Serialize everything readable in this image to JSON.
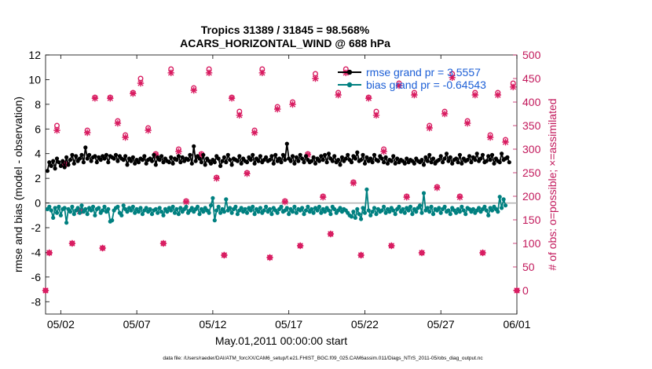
{
  "chart_data": {
    "type": "line",
    "title_lines": [
      "Tropics 31389 / 31845 = 98.568%",
      "ACARS_HORIZONTAL_WIND @ 688 hPa"
    ],
    "xlabel": "May.01,2011 00:00:00 start",
    "ylabel_left": "rmse and bias (model - observation)",
    "ylabel_right": "# of obs: o=possible; ×=assimilated",
    "xlim": [
      0,
      31
    ],
    "ylim_left": [
      -9,
      12
    ],
    "ylim_right": [
      -50,
      500
    ],
    "x_ticks": [
      1,
      6,
      11,
      16,
      21,
      26,
      31
    ],
    "x_tick_labels": [
      "05/02",
      "05/07",
      "05/12",
      "05/17",
      "05/22",
      "05/27",
      "06/01"
    ],
    "y_left_ticks": [
      -8,
      -6,
      -4,
      -2,
      0,
      2,
      4,
      6,
      8,
      10,
      12
    ],
    "y_right_ticks": [
      0,
      50,
      100,
      150,
      200,
      250,
      300,
      350,
      400,
      450,
      500
    ],
    "legend": {
      "placement": "top-right",
      "entries": [
        "rmse grand pr = 3.5557",
        "bias grand pr = -0.64543"
      ]
    },
    "series": [
      {
        "name": "rmse",
        "axis": "left",
        "color": "#000000",
        "x_start": 0.125,
        "x_step": 0.125,
        "values": [
          2.6,
          3.3,
          3.0,
          3.4,
          2.8,
          3.6,
          3.3,
          3.0,
          3.4,
          2.9,
          3.7,
          3.1,
          3.5,
          3.9,
          3.2,
          3.8,
          3.4,
          3.6,
          3.9,
          3.3,
          4.5,
          3.6,
          3.9,
          3.4,
          3.7,
          3.8,
          3.3,
          3.7,
          3.5,
          3.8,
          3.6,
          3.9,
          3.3,
          3.8,
          3.7,
          3.6,
          3.9,
          3.4,
          3.8,
          3.6,
          3.5,
          3.8,
          3.1,
          3.6,
          3.4,
          3.7,
          3.2,
          3.5,
          3.3,
          3.6,
          3.5,
          3.8,
          3.2,
          3.5,
          3.6,
          3.4,
          3.9,
          3.1,
          3.7,
          3.5,
          3.8,
          3.3,
          3.6,
          3.4,
          3.3,
          3.7,
          3.2,
          3.6,
          3.5,
          3.8,
          3.3,
          3.7,
          3.4,
          3.6,
          3.5,
          3.9,
          3.2,
          4.6,
          3.4,
          3.8,
          3.6,
          3.3,
          3.9,
          3.1,
          3.6,
          3.4,
          3.2,
          3.5,
          3.3,
          3.8,
          3.6,
          3.0,
          3.4,
          3.7,
          3.3,
          3.9,
          3.5,
          3.1,
          3.6,
          3.5,
          3.4,
          3.8,
          3.2,
          3.6,
          3.4,
          3.3,
          3.7,
          3.5,
          3.9,
          3.2,
          3.6,
          3.4,
          3.8,
          3.3,
          3.5,
          3.7,
          3.4,
          3.5,
          3.8,
          3.2,
          3.9,
          3.4,
          3.6,
          3.3,
          3.9,
          3.5,
          4.8,
          3.6,
          3.4,
          3.8,
          3.2,
          3.7,
          3.4,
          3.9,
          3.6,
          3.3,
          3.8,
          3.5,
          3.3,
          3.4,
          3.7,
          3.2,
          3.6,
          3.4,
          3.8,
          3.5,
          3.9,
          3.3,
          4.0,
          3.6,
          3.4,
          3.8,
          3.3,
          3.5,
          3.1,
          3.7,
          3.4,
          3.6,
          3.9,
          3.5,
          3.3,
          3.8,
          3.6,
          4.1,
          3.4,
          3.5,
          3.9,
          3.2,
          3.7,
          3.4,
          3.6,
          3.3,
          3.9,
          3.5,
          3.4,
          3.8,
          3.6,
          3.3,
          3.7,
          3.2,
          3.5,
          3.4,
          3.8,
          3.2,
          3.6,
          3.3,
          3.5,
          3.4,
          3.2,
          3.6,
          3.3,
          3.5,
          3.4,
          3.2,
          3.6,
          3.4,
          3.3,
          3.5,
          3.1,
          3.7,
          3.4,
          3.9,
          3.3,
          3.6,
          3.2,
          3.4,
          3.5,
          3.8,
          3.3,
          3.6,
          4.0,
          3.4,
          3.7,
          3.2,
          3.5,
          3.6,
          3.3,
          3.9,
          3.2,
          3.6,
          3.4,
          3.5,
          3.8,
          3.3,
          3.7,
          3.5,
          4.0,
          3.4,
          3.6,
          3.9,
          3.3,
          3.4,
          3.8,
          3.5,
          3.9,
          3.2,
          3.6,
          3.4,
          3.3,
          4.0,
          3.5,
          3.6,
          3.7,
          3.3
        ]
      },
      {
        "name": "bias",
        "axis": "left",
        "color": "#008080",
        "x_start": 0.125,
        "x_step": 0.125,
        "values": [
          -0.5,
          -0.3,
          -0.6,
          -1.2,
          -0.4,
          -0.8,
          -0.3,
          -1.0,
          -0.5,
          -0.4,
          -1.6,
          -0.5,
          -0.7,
          -0.3,
          -0.9,
          -0.6,
          -0.4,
          -0.8,
          -0.2,
          -0.7,
          -0.5,
          -0.9,
          -0.4,
          -0.6,
          -0.3,
          -1.0,
          -0.5,
          -0.4,
          -0.8,
          -0.6,
          -0.3,
          -0.7,
          -0.5,
          -1.5,
          -1.4,
          -0.6,
          -0.4,
          -0.3,
          -0.8,
          -1.0,
          -0.2,
          -0.5,
          -0.7,
          -0.4,
          -0.6,
          -0.3,
          -0.8,
          -0.5,
          -0.7,
          -0.4,
          -0.9,
          -0.6,
          -0.4,
          -0.7,
          -0.5,
          -0.9,
          -0.6,
          -0.5,
          -0.8,
          -0.4,
          -0.7,
          -1.0,
          -0.5,
          -0.7,
          -0.4,
          -0.6,
          -0.3,
          -0.8,
          -0.5,
          -0.9,
          -0.4,
          -0.7,
          -0.5,
          -0.3,
          -0.8,
          -0.6,
          -0.4,
          -0.7,
          -0.5,
          -0.3,
          -0.9,
          -0.5,
          -0.7,
          -0.4,
          -0.6,
          -0.8,
          -0.2,
          0.4,
          -1.4,
          -0.6,
          -0.3,
          -0.8,
          -0.5,
          -0.7,
          0.3,
          -0.6,
          -0.4,
          -0.8,
          -0.5,
          -0.3,
          -0.9,
          -0.6,
          -0.4,
          -0.7,
          -0.5,
          -0.8,
          -0.4,
          -0.6,
          -0.3,
          -0.9,
          -0.5,
          -0.7,
          -0.4,
          -0.8,
          -0.6,
          -0.3,
          -0.7,
          -0.5,
          -0.9,
          -0.4,
          -0.6,
          -0.8,
          -0.5,
          -0.3,
          -0.7,
          -0.6,
          -0.4,
          -0.9,
          -0.5,
          -0.7,
          -0.3,
          -0.8,
          -0.5,
          -0.6,
          -0.4,
          -0.9,
          -0.6,
          -0.3,
          -0.7,
          -0.5,
          -0.8,
          -0.4,
          -0.6,
          -0.3,
          -0.8,
          -0.5,
          -0.7,
          -0.4,
          -0.6,
          -0.9,
          -0.3,
          -0.5,
          -0.8,
          -0.6,
          -0.4,
          -0.7,
          -0.5,
          -0.6,
          -0.8,
          -1.0,
          -1.1,
          -0.7,
          -1.2,
          -0.5,
          -0.9,
          -1.3,
          -0.4,
          -0.8,
          1.1,
          -0.6,
          -1.0,
          -0.7,
          -0.4,
          -0.9,
          -0.5,
          -0.7,
          -0.6,
          -0.3,
          -0.8,
          -0.5,
          -0.7,
          -0.4,
          -0.6,
          -0.9,
          -0.5,
          -0.3,
          -0.7,
          -0.5,
          -0.8,
          -0.4,
          -0.6,
          -0.3,
          -0.9,
          -0.5,
          -0.7,
          -0.4,
          -0.2,
          -0.8,
          0.8,
          -0.6,
          -0.4,
          -0.7,
          -0.3,
          -0.9,
          -0.5,
          -0.6,
          -0.4,
          -0.8,
          -0.5,
          -0.3,
          -0.7,
          -0.6,
          -0.9,
          -0.4,
          -0.6,
          -0.8,
          -0.5,
          -0.7,
          -0.3,
          -0.6,
          -0.9,
          -0.4,
          -0.5,
          -0.7,
          -0.5,
          -0.8,
          -0.6,
          -0.4,
          -0.7,
          -0.5,
          -0.3,
          -0.6,
          -1.0,
          -0.4,
          -0.6,
          -0.3,
          -0.5,
          -0.7,
          0.5,
          -0.4,
          0.3,
          -0.2
        ]
      },
      {
        "name": "obs possible",
        "axis": "right",
        "color": "#d81b60",
        "marker": "o",
        "x": [
          0,
          0.25,
          0.75,
          1.25,
          1.75,
          2.25,
          2.75,
          3.25,
          3.75,
          4.25,
          4.75,
          5.25,
          5.75,
          6.25,
          6.75,
          7.25,
          7.75,
          8.25,
          8.75,
          9.25,
          9.75,
          10.25,
          10.75,
          11.25,
          11.75,
          12.25,
          12.75,
          13.25,
          13.75,
          14.25,
          14.75,
          15.25,
          15.75,
          16.25,
          16.75,
          17.25,
          17.75,
          18.25,
          18.75,
          19.25,
          19.75,
          20.25,
          20.75,
          21.25,
          21.75,
          22.25,
          22.75,
          23.25,
          23.75,
          24.25,
          24.75,
          25.25,
          25.75,
          26.25,
          26.75,
          27.25,
          27.75,
          28.25,
          28.75,
          29.25,
          29.75,
          30.25,
          30.75,
          31
        ],
        "values": [
          0,
          80,
          350,
          270,
          100,
          170,
          340,
          410,
          90,
          410,
          360,
          330,
          420,
          450,
          345,
          290,
          100,
          470,
          300,
          190,
          430,
          290,
          470,
          240,
          75,
          410,
          380,
          250,
          340,
          470,
          70,
          390,
          190,
          400,
          95,
          290,
          460,
          200,
          120,
          420,
          470,
          230,
          75,
          410,
          380,
          300,
          95,
          440,
          200,
          420,
          80,
          350,
          220,
          380,
          460,
          200,
          360,
          420,
          80,
          330,
          420,
          320,
          440,
          0
        ]
      },
      {
        "name": "obs assimilated",
        "axis": "right",
        "color": "#d81b60",
        "marker": "x",
        "x": [
          0,
          0.25,
          0.75,
          1.25,
          1.75,
          2.25,
          2.75,
          3.25,
          3.75,
          4.25,
          4.75,
          5.25,
          5.75,
          6.25,
          6.75,
          7.25,
          7.75,
          8.25,
          8.75,
          9.25,
          9.75,
          10.25,
          10.75,
          11.25,
          11.75,
          12.25,
          12.75,
          13.25,
          13.75,
          14.25,
          14.75,
          15.25,
          15.75,
          16.25,
          16.75,
          17.25,
          17.75,
          18.25,
          18.75,
          19.25,
          19.75,
          20.25,
          20.75,
          21.25,
          21.75,
          22.25,
          22.75,
          23.25,
          23.75,
          24.25,
          24.75,
          25.25,
          25.75,
          26.25,
          26.75,
          27.25,
          27.75,
          28.25,
          28.75,
          29.25,
          29.75,
          30.25,
          30.75,
          31
        ],
        "values": [
          0,
          80,
          340,
          268,
          100,
          168,
          335,
          408,
          90,
          408,
          355,
          325,
          418,
          440,
          340,
          288,
          100,
          462,
          295,
          188,
          425,
          288,
          462,
          238,
          75,
          408,
          372,
          248,
          335,
          462,
          70,
          385,
          188,
          395,
          95,
          288,
          450,
          198,
          120,
          415,
          462,
          228,
          75,
          408,
          372,
          295,
          95,
          435,
          198,
          415,
          80,
          345,
          218,
          375,
          452,
          198,
          355,
          415,
          80,
          325,
          415,
          315,
          432,
          0
        ]
      }
    ]
  },
  "footer": {
    "data_file_text": "data file: /Users/raeder/DAI/ATM_forcXX/CAM6_setup/f.e21.FHIST_BGC.f09_025.CAM6assim.011/Diags_NTrS_2011-05/obs_diag_output.nc"
  },
  "colors": {
    "rmse": "#000000",
    "bias": "#008080",
    "obs": "#d81b60",
    "right_axis": "#c2185b",
    "legend_text": "#1d5fd6",
    "zero_line": "#b0b0b0"
  }
}
